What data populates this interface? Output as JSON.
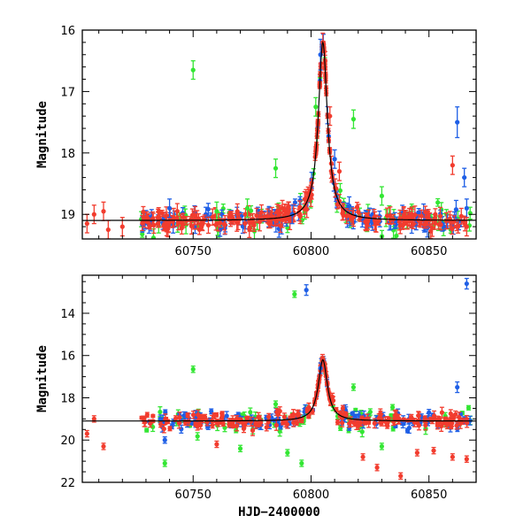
{
  "chart_data": [
    {
      "type": "scatter",
      "panel": "top",
      "title": "",
      "xlabel": "",
      "ylabel": "Magnitude",
      "xlim": [
        60703,
        60870
      ],
      "ylim": [
        19.4,
        16.0
      ],
      "y_inverted": true,
      "x_ticks": [
        60750,
        60800,
        60850
      ],
      "x_tick_labels": [
        "60750",
        "60800",
        "60850"
      ],
      "y_ticks": [
        16,
        17,
        18,
        19
      ],
      "y_tick_labels": [
        "16",
        "17",
        "18",
        "19"
      ],
      "baseline": 19.1,
      "peak_x": 60805,
      "peak_mag": 16.2,
      "colors": {
        "green": "#33e633",
        "blue": "#1f5fe6",
        "red": "#f23c2e",
        "model": "#000000"
      },
      "series": [
        {
          "color": "green",
          "x": [
            60750,
            60785,
            60802,
            60818,
            60830,
            60760,
            60773
          ],
          "y": [
            16.65,
            18.25,
            17.25,
            17.45,
            18.7,
            18.95,
            18.9
          ]
        },
        {
          "color": "blue",
          "x": [
            60740,
            60792,
            60804,
            60810,
            60862,
            60865,
            60866
          ],
          "y": [
            18.9,
            19.0,
            16.4,
            18.1,
            17.5,
            18.4,
            18.9
          ]
        },
        {
          "color": "red",
          "x": [
            60705,
            60708,
            60712,
            60714,
            60720,
            60805,
            60806,
            60808,
            60812,
            60860,
            60866
          ],
          "y": [
            19.15,
            19.0,
            18.95,
            19.25,
            19.2,
            16.2,
            16.5,
            17.4,
            18.3,
            18.2,
            19.2
          ]
        }
      ],
      "dense_scatter_x_range": [
        60728,
        60868
      ]
    },
    {
      "type": "scatter",
      "panel": "bottom",
      "title": "",
      "xlabel": "HJD−2400000",
      "ylabel": "Magnitude",
      "xlim": [
        60703,
        60870
      ],
      "ylim": [
        22.0,
        12.2
      ],
      "y_inverted": true,
      "x_ticks": [
        60750,
        60800,
        60850
      ],
      "x_tick_labels": [
        "60750",
        "60800",
        "60850"
      ],
      "y_ticks": [
        14,
        16,
        18,
        20,
        22
      ],
      "y_tick_labels": [
        "14",
        "16",
        "18",
        "20",
        "22"
      ],
      "baseline": 19.1,
      "peak_x": 60805,
      "peak_mag": 16.2,
      "colors": {
        "green": "#33e633",
        "blue": "#1f5fe6",
        "red": "#f23c2e",
        "model": "#000000"
      },
      "series": [
        {
          "color": "green",
          "x": [
            60738,
            60750,
            60785,
            60793,
            60818,
            60790,
            60796,
            60770,
            60830
          ],
          "y": [
            21.1,
            16.65,
            18.3,
            13.1,
            17.5,
            20.6,
            21.1,
            20.4,
            20.3
          ]
        },
        {
          "color": "blue",
          "x": [
            60738,
            60798,
            60804,
            60850,
            60862,
            60866
          ],
          "y": [
            20.0,
            12.9,
            16.6,
            18.7,
            17.5,
            12.6
          ]
        },
        {
          "color": "red",
          "x": [
            60705,
            60708,
            60712,
            60760,
            60805,
            60822,
            60828,
            60838,
            60845,
            60852,
            60860,
            60866
          ],
          "y": [
            19.7,
            19.0,
            20.3,
            20.2,
            16.2,
            20.8,
            21.3,
            21.7,
            20.6,
            20.5,
            20.8,
            20.9
          ]
        }
      ],
      "dense_scatter_x_range": [
        60728,
        60868
      ]
    }
  ]
}
